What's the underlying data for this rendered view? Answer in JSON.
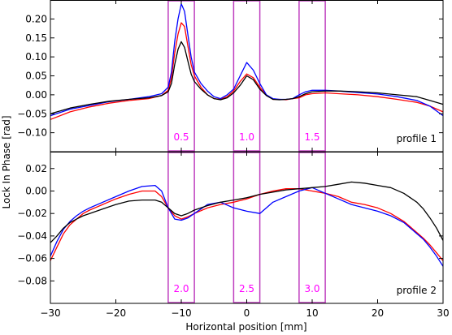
{
  "colors": {
    "background": "#ffffff",
    "axes": "#000000",
    "box": "#bf3fbf",
    "box_label": "#ff00ff"
  },
  "chart_data": [
    {
      "type": "line",
      "label": "profile 1",
      "xlim": [
        -30,
        30
      ],
      "ylim": [
        -0.15,
        0.25
      ],
      "x_ticks": [
        -30,
        -20,
        -10,
        0,
        10,
        20,
        30
      ],
      "y_ticks": [
        -0.1,
        -0.05,
        0.0,
        0.05,
        0.1,
        0.15,
        0.2
      ],
      "y_tick_labels": [
        "−0.10",
        "−0.05",
        "0.00",
        "0.05",
        "0.10",
        "0.15",
        "0.20"
      ],
      "boxes": [
        {
          "x_range": [
            -12,
            -8
          ],
          "label": "0.5"
        },
        {
          "x_range": [
            -2,
            2
          ],
          "label": "1.0"
        },
        {
          "x_range": [
            8,
            12
          ],
          "label": "1.5"
        }
      ],
      "series": [
        {
          "color": "#ff0000",
          "x": [
            -30,
            -27,
            -24,
            -21,
            -18,
            -15,
            -13,
            -12,
            -11.5,
            -11,
            -10.5,
            -10,
            -9.5,
            -9,
            -8.5,
            -8,
            -7,
            -6,
            -5,
            -4,
            -3,
            -2,
            -1,
            0,
            1,
            2,
            3,
            4,
            5,
            6,
            7,
            8,
            9,
            10,
            12,
            14,
            17,
            20,
            23,
            26,
            28,
            30
          ],
          "y": [
            -0.065,
            -0.045,
            -0.032,
            -0.022,
            -0.015,
            -0.01,
            -0.002,
            0.012,
            0.045,
            0.11,
            0.16,
            0.19,
            0.18,
            0.13,
            0.08,
            0.05,
            0.02,
            0.0,
            -0.01,
            -0.012,
            -0.005,
            0.01,
            0.035,
            0.055,
            0.045,
            0.02,
            0.0,
            -0.012,
            -0.012,
            -0.013,
            -0.01,
            -0.008,
            0.0,
            0.003,
            0.005,
            0.003,
            0.0,
            -0.005,
            -0.012,
            -0.02,
            -0.03,
            -0.045
          ]
        },
        {
          "color": "#0000ff",
          "x": [
            -30,
            -27,
            -24,
            -21,
            -18,
            -15,
            -13,
            -12,
            -11.5,
            -11,
            -10.5,
            -10,
            -9.5,
            -9,
            -8.5,
            -8,
            -7,
            -6,
            -5,
            -4,
            -3,
            -2,
            -1,
            0,
            1,
            2,
            3,
            4,
            5,
            6,
            7,
            8,
            9,
            10,
            12,
            14,
            17,
            20,
            23,
            26,
            28,
            30
          ],
          "y": [
            -0.055,
            -0.038,
            -0.028,
            -0.018,
            -0.012,
            -0.005,
            0.003,
            0.02,
            0.06,
            0.14,
            0.2,
            0.24,
            0.22,
            0.16,
            0.1,
            0.06,
            0.03,
            0.01,
            -0.005,
            -0.01,
            0.0,
            0.015,
            0.05,
            0.085,
            0.065,
            0.03,
            0.0,
            -0.01,
            -0.012,
            -0.012,
            -0.01,
            0.0,
            0.008,
            0.012,
            0.012,
            0.01,
            0.006,
            0.002,
            -0.005,
            -0.015,
            -0.03,
            -0.055
          ]
        },
        {
          "color": "#000000",
          "x": [
            -30,
            -27,
            -24,
            -21,
            -18,
            -15,
            -13,
            -12,
            -11.5,
            -11,
            -10.5,
            -10,
            -9.5,
            -9,
            -8.5,
            -8,
            -7,
            -6,
            -5,
            -4,
            -3,
            -2,
            -1,
            0,
            1,
            2,
            3,
            4,
            5,
            6,
            7,
            8,
            9,
            10,
            12,
            14,
            17,
            20,
            23,
            26,
            28,
            30
          ],
          "y": [
            -0.05,
            -0.035,
            -0.025,
            -0.017,
            -0.012,
            -0.008,
            -0.002,
            0.008,
            0.03,
            0.08,
            0.12,
            0.14,
            0.125,
            0.09,
            0.055,
            0.035,
            0.015,
            0.0,
            -0.01,
            -0.013,
            -0.008,
            0.005,
            0.025,
            0.05,
            0.04,
            0.015,
            -0.002,
            -0.012,
            -0.013,
            -0.012,
            -0.01,
            -0.005,
            0.003,
            0.008,
            0.01,
            0.01,
            0.008,
            0.005,
            0.0,
            -0.005,
            -0.015,
            -0.025
          ]
        }
      ]
    },
    {
      "type": "line",
      "label": "profile 2",
      "xlim": [
        -30,
        30
      ],
      "ylim": [
        -0.1,
        0.035
      ],
      "x_ticks": [
        -30,
        -20,
        -10,
        0,
        10,
        20,
        30
      ],
      "x_tick_labels": [
        "−30",
        "−20",
        "−10",
        "0",
        "10",
        "20",
        "30"
      ],
      "y_ticks": [
        -0.08,
        -0.06,
        -0.04,
        -0.02,
        0.0,
        0.02
      ],
      "y_tick_labels": [
        "−0.08",
        "−0.06",
        "−0.04",
        "−0.02",
        "0.00",
        "0.02"
      ],
      "xlabel": "Horizontal position [mm]",
      "boxes": [
        {
          "x_range": [
            -12,
            -8
          ],
          "label": "2.0"
        },
        {
          "x_range": [
            -2,
            2
          ],
          "label": "2.5"
        },
        {
          "x_range": [
            8,
            12
          ],
          "label": "3.0"
        }
      ],
      "series": [
        {
          "color": "#ff0000",
          "x": [
            -30,
            -29,
            -28,
            -27,
            -26,
            -25,
            -24,
            -22,
            -20,
            -18,
            -16,
            -14,
            -13,
            -12,
            -11,
            -10,
            -9,
            -8,
            -6,
            -4,
            -2,
            0,
            2,
            4,
            6,
            8,
            10,
            12,
            14,
            16,
            18,
            20,
            22,
            24,
            25,
            26,
            27,
            28,
            29,
            30
          ],
          "y": [
            -0.062,
            -0.05,
            -0.038,
            -0.03,
            -0.025,
            -0.02,
            -0.017,
            -0.012,
            -0.007,
            -0.003,
            0.0,
            0.0,
            -0.005,
            -0.015,
            -0.022,
            -0.025,
            -0.023,
            -0.02,
            -0.015,
            -0.012,
            -0.01,
            -0.007,
            -0.003,
            0.0,
            0.002,
            0.002,
            0.0,
            -0.002,
            -0.005,
            -0.01,
            -0.012,
            -0.015,
            -0.02,
            -0.027,
            -0.032,
            -0.037,
            -0.042,
            -0.048,
            -0.055,
            -0.062
          ]
        },
        {
          "color": "#0000ff",
          "x": [
            -30,
            -29,
            -28,
            -27,
            -26,
            -25,
            -24,
            -22,
            -20,
            -18,
            -16,
            -14,
            -13,
            -12,
            -11,
            -10,
            -9,
            -8,
            -6,
            -4,
            -2,
            0,
            2,
            4,
            6,
            8,
            10,
            12,
            14,
            16,
            18,
            20,
            22,
            24,
            25,
            26,
            27,
            28,
            29,
            30
          ],
          "y": [
            -0.058,
            -0.045,
            -0.034,
            -0.027,
            -0.022,
            -0.018,
            -0.015,
            -0.01,
            -0.005,
            0.0,
            0.004,
            0.005,
            0.0,
            -0.015,
            -0.025,
            -0.026,
            -0.024,
            -0.02,
            -0.012,
            -0.01,
            -0.015,
            -0.018,
            -0.02,
            -0.01,
            -0.005,
            0.0,
            0.003,
            -0.002,
            -0.007,
            -0.012,
            -0.015,
            -0.018,
            -0.022,
            -0.028,
            -0.033,
            -0.038,
            -0.043,
            -0.05,
            -0.058,
            -0.067
          ]
        },
        {
          "color": "#000000",
          "x": [
            -30,
            -29,
            -28,
            -27,
            -26,
            -25,
            -24,
            -22,
            -20,
            -18,
            -16,
            -14,
            -13,
            -12,
            -11,
            -10,
            -9,
            -8,
            -6,
            -4,
            -2,
            0,
            2,
            4,
            6,
            8,
            10,
            12,
            14,
            16,
            18,
            20,
            22,
            24,
            25,
            26,
            27,
            28,
            29,
            30
          ],
          "y": [
            -0.046,
            -0.04,
            -0.033,
            -0.028,
            -0.025,
            -0.022,
            -0.02,
            -0.016,
            -0.012,
            -0.009,
            -0.008,
            -0.008,
            -0.01,
            -0.015,
            -0.02,
            -0.022,
            -0.02,
            -0.017,
            -0.013,
            -0.01,
            -0.008,
            -0.006,
            -0.003,
            -0.001,
            0.001,
            0.002,
            0.003,
            0.004,
            0.006,
            0.008,
            0.007,
            0.005,
            0.003,
            -0.002,
            -0.006,
            -0.01,
            -0.016,
            -0.024,
            -0.033,
            -0.044
          ]
        }
      ]
    }
  ],
  "ylabel": "Lock In Phase [rad]"
}
